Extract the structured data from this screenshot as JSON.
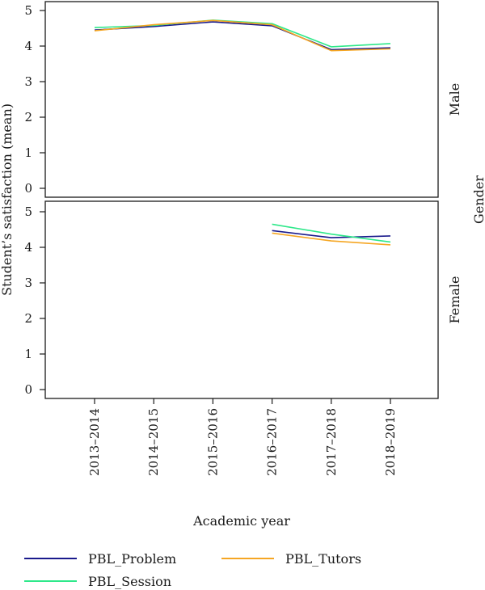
{
  "chart_data": {
    "type": "line",
    "categories": [
      "2013–2014",
      "2014–2015",
      "2015–2016",
      "2016–2017",
      "2017–2018",
      "2018–2019"
    ],
    "xlabel": "Academic year",
    "ylabel": "Student’s satisfaction (mean)",
    "facet_label": "Gender",
    "ylim": [
      0,
      5
    ],
    "yticks": [
      "0",
      "1",
      "2",
      "3",
      "4",
      "5"
    ],
    "legend_position": "bottom",
    "panels": [
      {
        "label": "Male",
        "series": [
          {
            "name": "PBL_Problem",
            "color": "#1a1a8c",
            "values": [
              4.45,
              4.55,
              4.68,
              4.57,
              3.9,
              3.95
            ]
          },
          {
            "name": "PBL_Session",
            "color": "#2ee88a",
            "values": [
              4.52,
              4.58,
              4.73,
              4.63,
              3.98,
              4.07
            ]
          },
          {
            "name": "PBL_Tutors",
            "color": "#f5a623",
            "values": [
              4.43,
              4.6,
              4.72,
              4.6,
              3.87,
              3.92
            ]
          }
        ]
      },
      {
        "label": "Female",
        "series": [
          {
            "name": "PBL_Problem",
            "color": "#1a1a8c",
            "values": [
              null,
              null,
              null,
              4.47,
              4.27,
              4.32
            ]
          },
          {
            "name": "PBL_Session",
            "color": "#2ee88a",
            "values": [
              null,
              null,
              null,
              4.65,
              4.37,
              4.15
            ]
          },
          {
            "name": "PBL_Tutors",
            "color": "#f5a623",
            "values": [
              null,
              null,
              null,
              4.4,
              4.18,
              4.07
            ]
          }
        ]
      }
    ],
    "legend": [
      {
        "name": "PBL_Problem",
        "color": "#1a1a8c"
      },
      {
        "name": "PBL_Tutors",
        "color": "#f5a623"
      },
      {
        "name": "PBL_Session",
        "color": "#2ee88a"
      }
    ]
  }
}
